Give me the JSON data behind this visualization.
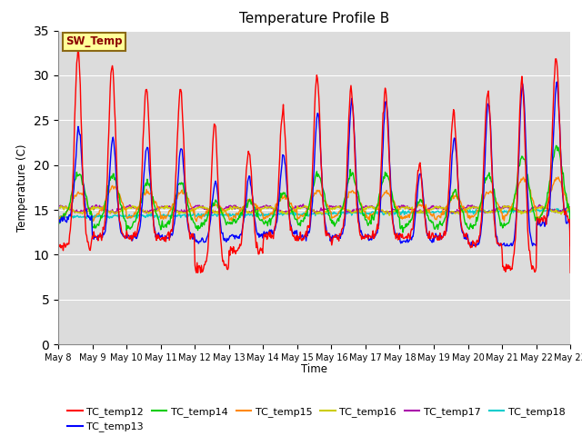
{
  "title": "Temperature Profile B",
  "xlabel": "Time",
  "ylabel": "Temperature (C)",
  "ylim": [
    0,
    35
  ],
  "yticks": [
    0,
    5,
    10,
    15,
    20,
    25,
    30,
    35
  ],
  "background_color": "#dcdcdc",
  "sw_temp_label": "SW_Temp",
  "sw_temp_box_color": "#ffff99",
  "sw_temp_text_color": "#8b0000",
  "series_colors": {
    "TC_temp12": "#ff0000",
    "TC_temp13": "#0000ff",
    "TC_temp14": "#00cc00",
    "TC_temp15": "#ff8800",
    "TC_temp16": "#cccc00",
    "TC_temp17": "#aa00aa",
    "TC_temp18": "#00cccc"
  },
  "n_points": 720
}
